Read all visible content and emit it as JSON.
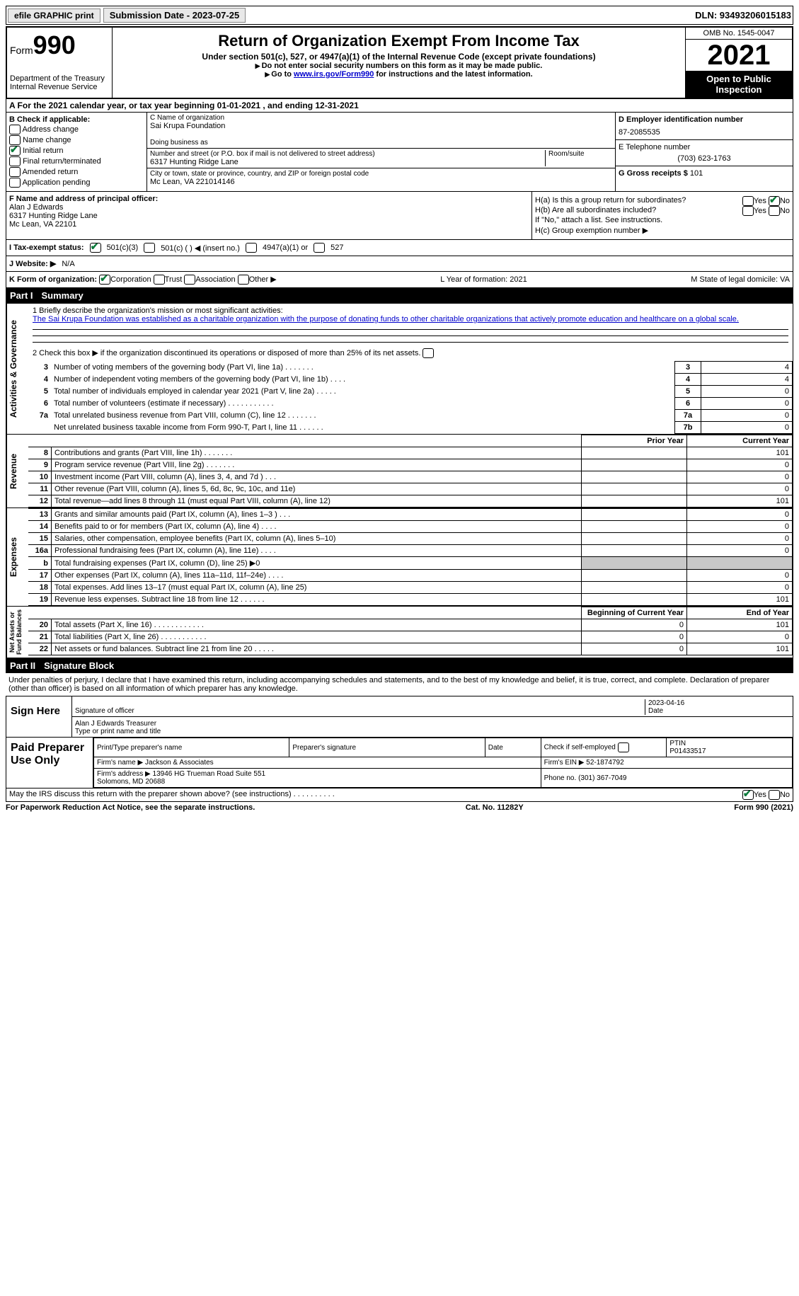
{
  "top": {
    "efile_btn": "efile GRAPHIC print",
    "sub_date_label": "Submission Date - 2023-07-25",
    "dln": "DLN: 93493206015183"
  },
  "header": {
    "form_word": "Form",
    "form_num": "990",
    "dept": "Department of the Treasury\nInternal Revenue Service",
    "title": "Return of Organization Exempt From Income Tax",
    "subtitle": "Under section 501(c), 527, or 4947(a)(1) of the Internal Revenue Code (except private foundations)",
    "note1": "Do not enter social security numbers on this form as it may be made public.",
    "note2_pre": "Go to ",
    "note2_link": "www.irs.gov/Form990",
    "note2_post": " for instructions and the latest information.",
    "omb": "OMB No. 1545-0047",
    "year": "2021",
    "open": "Open to Public Inspection"
  },
  "rowA": "A For the 2021 calendar year, or tax year beginning 01-01-2021    , and ending 12-31-2021",
  "B": {
    "label": "B Check if applicable:",
    "opts": [
      "Address change",
      "Name change",
      "Initial return",
      "Final return/terminated",
      "Amended return",
      "Application pending"
    ],
    "checked_idx": 2
  },
  "C": {
    "name_label": "C Name of organization",
    "name": "Sai Krupa Foundation",
    "dba_label": "Doing business as",
    "dba": "",
    "addr_label": "Number and street (or P.O. box if mail is not delivered to street address)",
    "addr": "6317 Hunting Ridge Lane",
    "room_label": "Room/suite",
    "city_label": "City or town, state or province, country, and ZIP or foreign postal code",
    "city": "Mc Lean, VA  221014146"
  },
  "D": {
    "label": "D Employer identification number",
    "value": "87-2085535"
  },
  "E": {
    "label": "E Telephone number",
    "value": "(703) 623-1763"
  },
  "G": {
    "label": "G Gross receipts $",
    "value": "101"
  },
  "F": {
    "label": "F Name and address of principal officer:",
    "name": "Alan J Edwards",
    "addr1": "6317 Hunting Ridge Lane",
    "addr2": "Mc Lean, VA  22101"
  },
  "H": {
    "a": "H(a)  Is this a group return for subordinates?",
    "b": "H(b)  Are all subordinates included?",
    "b_note": "If \"No,\" attach a list. See instructions.",
    "c": "H(c)  Group exemption number ▶",
    "yes": "Yes",
    "no": "No"
  },
  "I": {
    "label": "I  Tax-exempt status:",
    "opts": [
      "501(c)(3)",
      "501(c) (  ) ◀ (insert no.)",
      "4947(a)(1) or",
      "527"
    ]
  },
  "J": {
    "label": "J  Website: ▶",
    "value": "N/A"
  },
  "K": {
    "label": "K Form of organization:",
    "opts": [
      "Corporation",
      "Trust",
      "Association",
      "Other ▶"
    ],
    "L": "L Year of formation: 2021",
    "M": "M State of legal domicile: VA"
  },
  "partI": {
    "num": "Part I",
    "title": "Summary"
  },
  "summary": {
    "q1_label": "1   Briefly describe the organization's mission or most significant activities:",
    "q1_text": "The Sai Krupa Foundation was established as a charitable organization with the purpose of donating funds to other charitable organizations that actively promote education and healthcare on a global scale.",
    "q2": "2   Check this box ▶         if the organization discontinued its operations or disposed of more than 25% of its net assets.",
    "rows": [
      {
        "n": "3",
        "d": "Number of voting members of the governing body (Part VI, line 1a)   .    .    .    .    .    .    .",
        "b": "3",
        "v": "4"
      },
      {
        "n": "4",
        "d": "Number of independent voting members of the governing body (Part VI, line 1b)   .    .    .    .",
        "b": "4",
        "v": "4"
      },
      {
        "n": "5",
        "d": "Total number of individuals employed in calendar year 2021 (Part V, line 2a)   .    .    .    .    .",
        "b": "5",
        "v": "0"
      },
      {
        "n": "6",
        "d": "Total number of volunteers (estimate if necessary)    .    .    .    .    .    .    .    .    .    .    .",
        "b": "6",
        "v": "0"
      },
      {
        "n": "7a",
        "d": "Total unrelated business revenue from Part VIII, column (C), line 12   .    .    .    .    .    .    .",
        "b": "7a",
        "v": "0"
      },
      {
        "n": "",
        "d": "Net unrelated business taxable income from Form 990-T, Part I, line 11   .    .    .    .    .    .",
        "b": "7b",
        "v": "0"
      }
    ],
    "prior_hdr": "Prior Year",
    "curr_hdr": "Current Year"
  },
  "revenue": {
    "label": "Revenue",
    "rows": [
      {
        "n": "8",
        "d": "Contributions and grants (Part VIII, line 1h)    .    .    .    .    .    .    .",
        "p": "",
        "c": "101"
      },
      {
        "n": "9",
        "d": "Program service revenue (Part VIII, line 2g)    .    .    .    .    .    .    .",
        "p": "",
        "c": "0"
      },
      {
        "n": "10",
        "d": "Investment income (Part VIII, column (A), lines 3, 4, and 7d )    .    .    .",
        "p": "",
        "c": "0"
      },
      {
        "n": "11",
        "d": "Other revenue (Part VIII, column (A), lines 5, 6d, 8c, 9c, 10c, and 11e)",
        "p": "",
        "c": "0"
      },
      {
        "n": "12",
        "d": "Total revenue—add lines 8 through 11 (must equal Part VIII, column (A), line 12)",
        "p": "",
        "c": "101"
      }
    ]
  },
  "expenses": {
    "label": "Expenses",
    "rows": [
      {
        "n": "13",
        "d": "Grants and similar amounts paid (Part IX, column (A), lines 1–3 )   .    .    .",
        "p": "",
        "c": "0"
      },
      {
        "n": "14",
        "d": "Benefits paid to or for members (Part IX, column (A), line 4)   .    .    .    .",
        "p": "",
        "c": "0"
      },
      {
        "n": "15",
        "d": "Salaries, other compensation, employee benefits (Part IX, column (A), lines 5–10)",
        "p": "",
        "c": "0"
      },
      {
        "n": "16a",
        "d": "Professional fundraising fees (Part IX, column (A), line 11e)   .    .    .    .",
        "p": "",
        "c": "0"
      },
      {
        "n": "b",
        "d": "Total fundraising expenses (Part IX, column (D), line 25) ▶0",
        "p": "shaded",
        "c": "shaded"
      },
      {
        "n": "17",
        "d": "Other expenses (Part IX, column (A), lines 11a–11d, 11f–24e)    .    .    .    .",
        "p": "",
        "c": "0"
      },
      {
        "n": "18",
        "d": "Total expenses. Add lines 13–17 (must equal Part IX, column (A), line 25)",
        "p": "",
        "c": "0"
      },
      {
        "n": "19",
        "d": "Revenue less expenses. Subtract line 18 from line 12   .    .    .    .    .    .",
        "p": "",
        "c": "101"
      }
    ]
  },
  "netassets": {
    "label": "Net Assets or Fund Balances",
    "beg_hdr": "Beginning of Current Year",
    "end_hdr": "End of Year",
    "rows": [
      {
        "n": "20",
        "d": "Total assets (Part X, line 16)   .    .    .    .    .    .    .    .    .    .    .    .",
        "p": "0",
        "c": "101"
      },
      {
        "n": "21",
        "d": "Total liabilities (Part X, line 26)    .    .    .    .    .    .    .    .    .    .    .",
        "p": "0",
        "c": "0"
      },
      {
        "n": "22",
        "d": "Net assets or fund balances. Subtract line 21 from line 20   .    .    .    .    .",
        "p": "0",
        "c": "101"
      }
    ]
  },
  "partII": {
    "num": "Part II",
    "title": "Signature Block"
  },
  "sig": {
    "declaration": "Under penalties of perjury, I declare that I have examined this return, including accompanying schedules and statements, and to the best of my knowledge and belief, it is true, correct, and complete. Declaration of preparer (other than officer) is based on all information of which preparer has any knowledge.",
    "sign_here": "Sign Here",
    "sig_officer": "Signature of officer",
    "sig_date": "2023-04-16",
    "date_label": "Date",
    "name_title": "Alan J Edwards  Treasurer",
    "name_label": "Type or print name and title"
  },
  "prep": {
    "label": "Paid Preparer Use Only",
    "print_name_label": "Print/Type preparer's name",
    "prep_sig_label": "Preparer's signature",
    "date_label": "Date",
    "self_emp": "Check         if self-employed",
    "ptin_label": "PTIN",
    "ptin": "P01433517",
    "firm_name_label": "Firm's name    ▶",
    "firm_name": "Jackson & Associates",
    "firm_ein_label": "Firm's EIN ▶",
    "firm_ein": "52-1874792",
    "firm_addr_label": "Firm's address ▶",
    "firm_addr": "13946 HG Trueman Road Suite 551\nSolomons, MD  20688",
    "phone_label": "Phone no.",
    "phone": "(301) 367-7049"
  },
  "footer": {
    "discuss": "May the IRS discuss this return with the preparer shown above? (see instructions)    .    .    .    .    .    .    .    .    .    .",
    "yes": "Yes",
    "no": "No",
    "paperwork": "For Paperwork Reduction Act Notice, see the separate instructions.",
    "cat": "Cat. No. 11282Y",
    "form": "Form 990 (2021)"
  },
  "vert": {
    "ag": "Activities & Governance",
    "rev": "Revenue",
    "exp": "Expenses",
    "na": "Net Assets or\nFund Balances"
  }
}
